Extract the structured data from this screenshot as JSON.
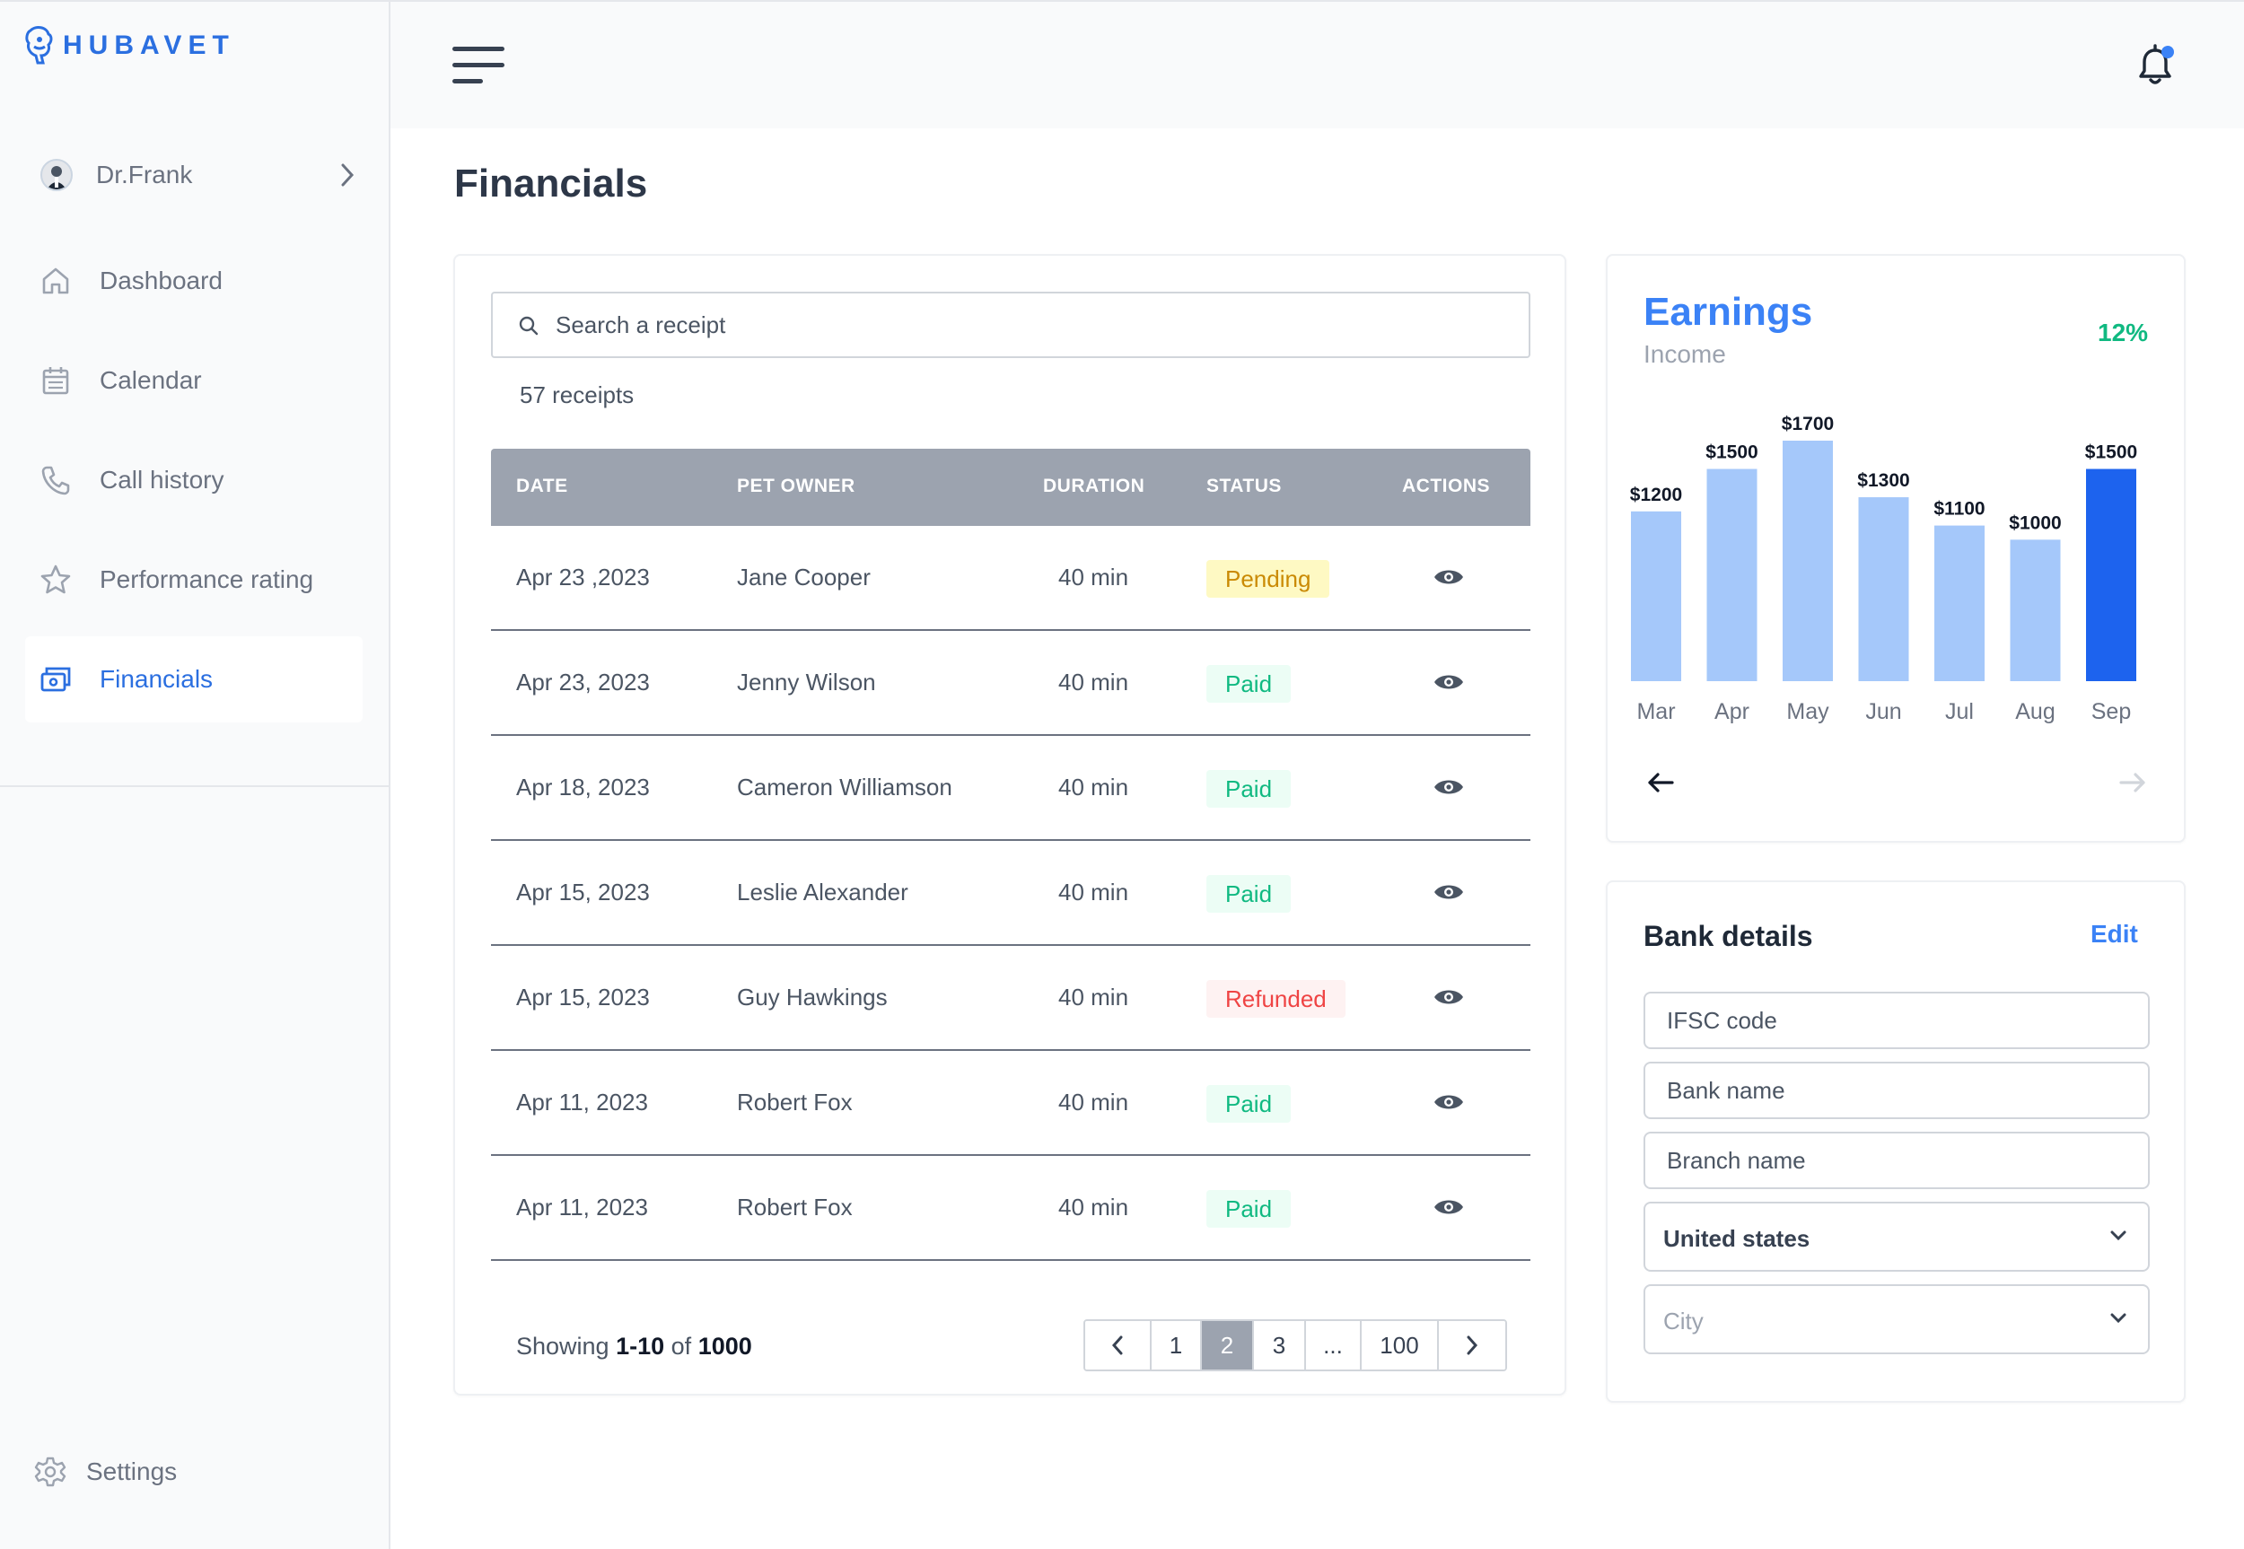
{
  "brand": {
    "name": "HUBAVET"
  },
  "profile": {
    "name": "Dr.Frank"
  },
  "nav": [
    {
      "label": "Dashboard",
      "icon": "home-icon"
    },
    {
      "label": "Calendar",
      "icon": "calendar-icon"
    },
    {
      "label": "Call history",
      "icon": "phone-icon"
    },
    {
      "label": "Performance rating",
      "icon": "star-icon"
    },
    {
      "label": "Financials",
      "icon": "wallet-icon",
      "active": true
    }
  ],
  "settings": {
    "label": "Settings"
  },
  "page": {
    "title": "Financials"
  },
  "receipts": {
    "search_placeholder": "Search a receipt",
    "count": "57 receipts",
    "columns": [
      "DATE",
      "PET OWNER",
      "DURATION",
      "STATUS",
      "ACTIONS"
    ],
    "rows": [
      {
        "date": "Apr 23 ,2023",
        "owner": "Jane Cooper",
        "duration": "40 min",
        "status": "Pending",
        "kind": "pending"
      },
      {
        "date": "Apr 23, 2023",
        "owner": "Jenny Wilson",
        "duration": "40 min",
        "status": "Paid",
        "kind": "paid"
      },
      {
        "date": "Apr 18, 2023",
        "owner": "Cameron Williamson",
        "duration": "40 min",
        "status": "Paid",
        "kind": "paid"
      },
      {
        "date": "Apr 15, 2023",
        "owner": "Leslie Alexander",
        "duration": "40 min",
        "status": "Paid",
        "kind": "paid"
      },
      {
        "date": "Apr 15, 2023",
        "owner": "Guy Hawkings",
        "duration": "40 min",
        "status": "Refunded",
        "kind": "refunded"
      },
      {
        "date": "Apr 11, 2023",
        "owner": "Robert Fox",
        "duration": "40 min",
        "status": "Paid",
        "kind": "paid"
      },
      {
        "date": "Apr 11, 2023",
        "owner": "Robert Fox",
        "duration": "40 min",
        "status": "Paid",
        "kind": "paid"
      }
    ],
    "showing": {
      "prefix": "Showing",
      "range": "1-10",
      "of": "of",
      "total": "1000"
    },
    "pagination": {
      "pages": [
        "1",
        "2",
        "3",
        "...",
        "100"
      ],
      "current": "2"
    }
  },
  "earnings": {
    "title": "Earnings",
    "subtitle": "Income",
    "change": "12%"
  },
  "chart_data": {
    "type": "bar",
    "categories": [
      "Mar",
      "Apr",
      "May",
      "Jun",
      "Jul",
      "Aug",
      "Sep"
    ],
    "values": [
      1200,
      1500,
      1700,
      1300,
      1100,
      1000,
      1500
    ],
    "labels": [
      "$1200",
      "$1500",
      "$1700",
      "$1300",
      "$1100",
      "$1000",
      "$1500"
    ],
    "highlight_index": 6,
    "colors": {
      "bar": "#a5c8fa",
      "highlight": "#1d63ee"
    }
  },
  "bank": {
    "title": "Bank details",
    "edit_label": "Edit",
    "ifsc_placeholder": "IFSC code",
    "bank_name_placeholder": "Bank name",
    "branch_placeholder": "Branch name",
    "country": "United states",
    "city_placeholder": "City"
  },
  "colors": {
    "accent": "#2b6fe0",
    "paid": "#10b981",
    "pending": "#ca8a04",
    "refunded": "#ef4444"
  }
}
